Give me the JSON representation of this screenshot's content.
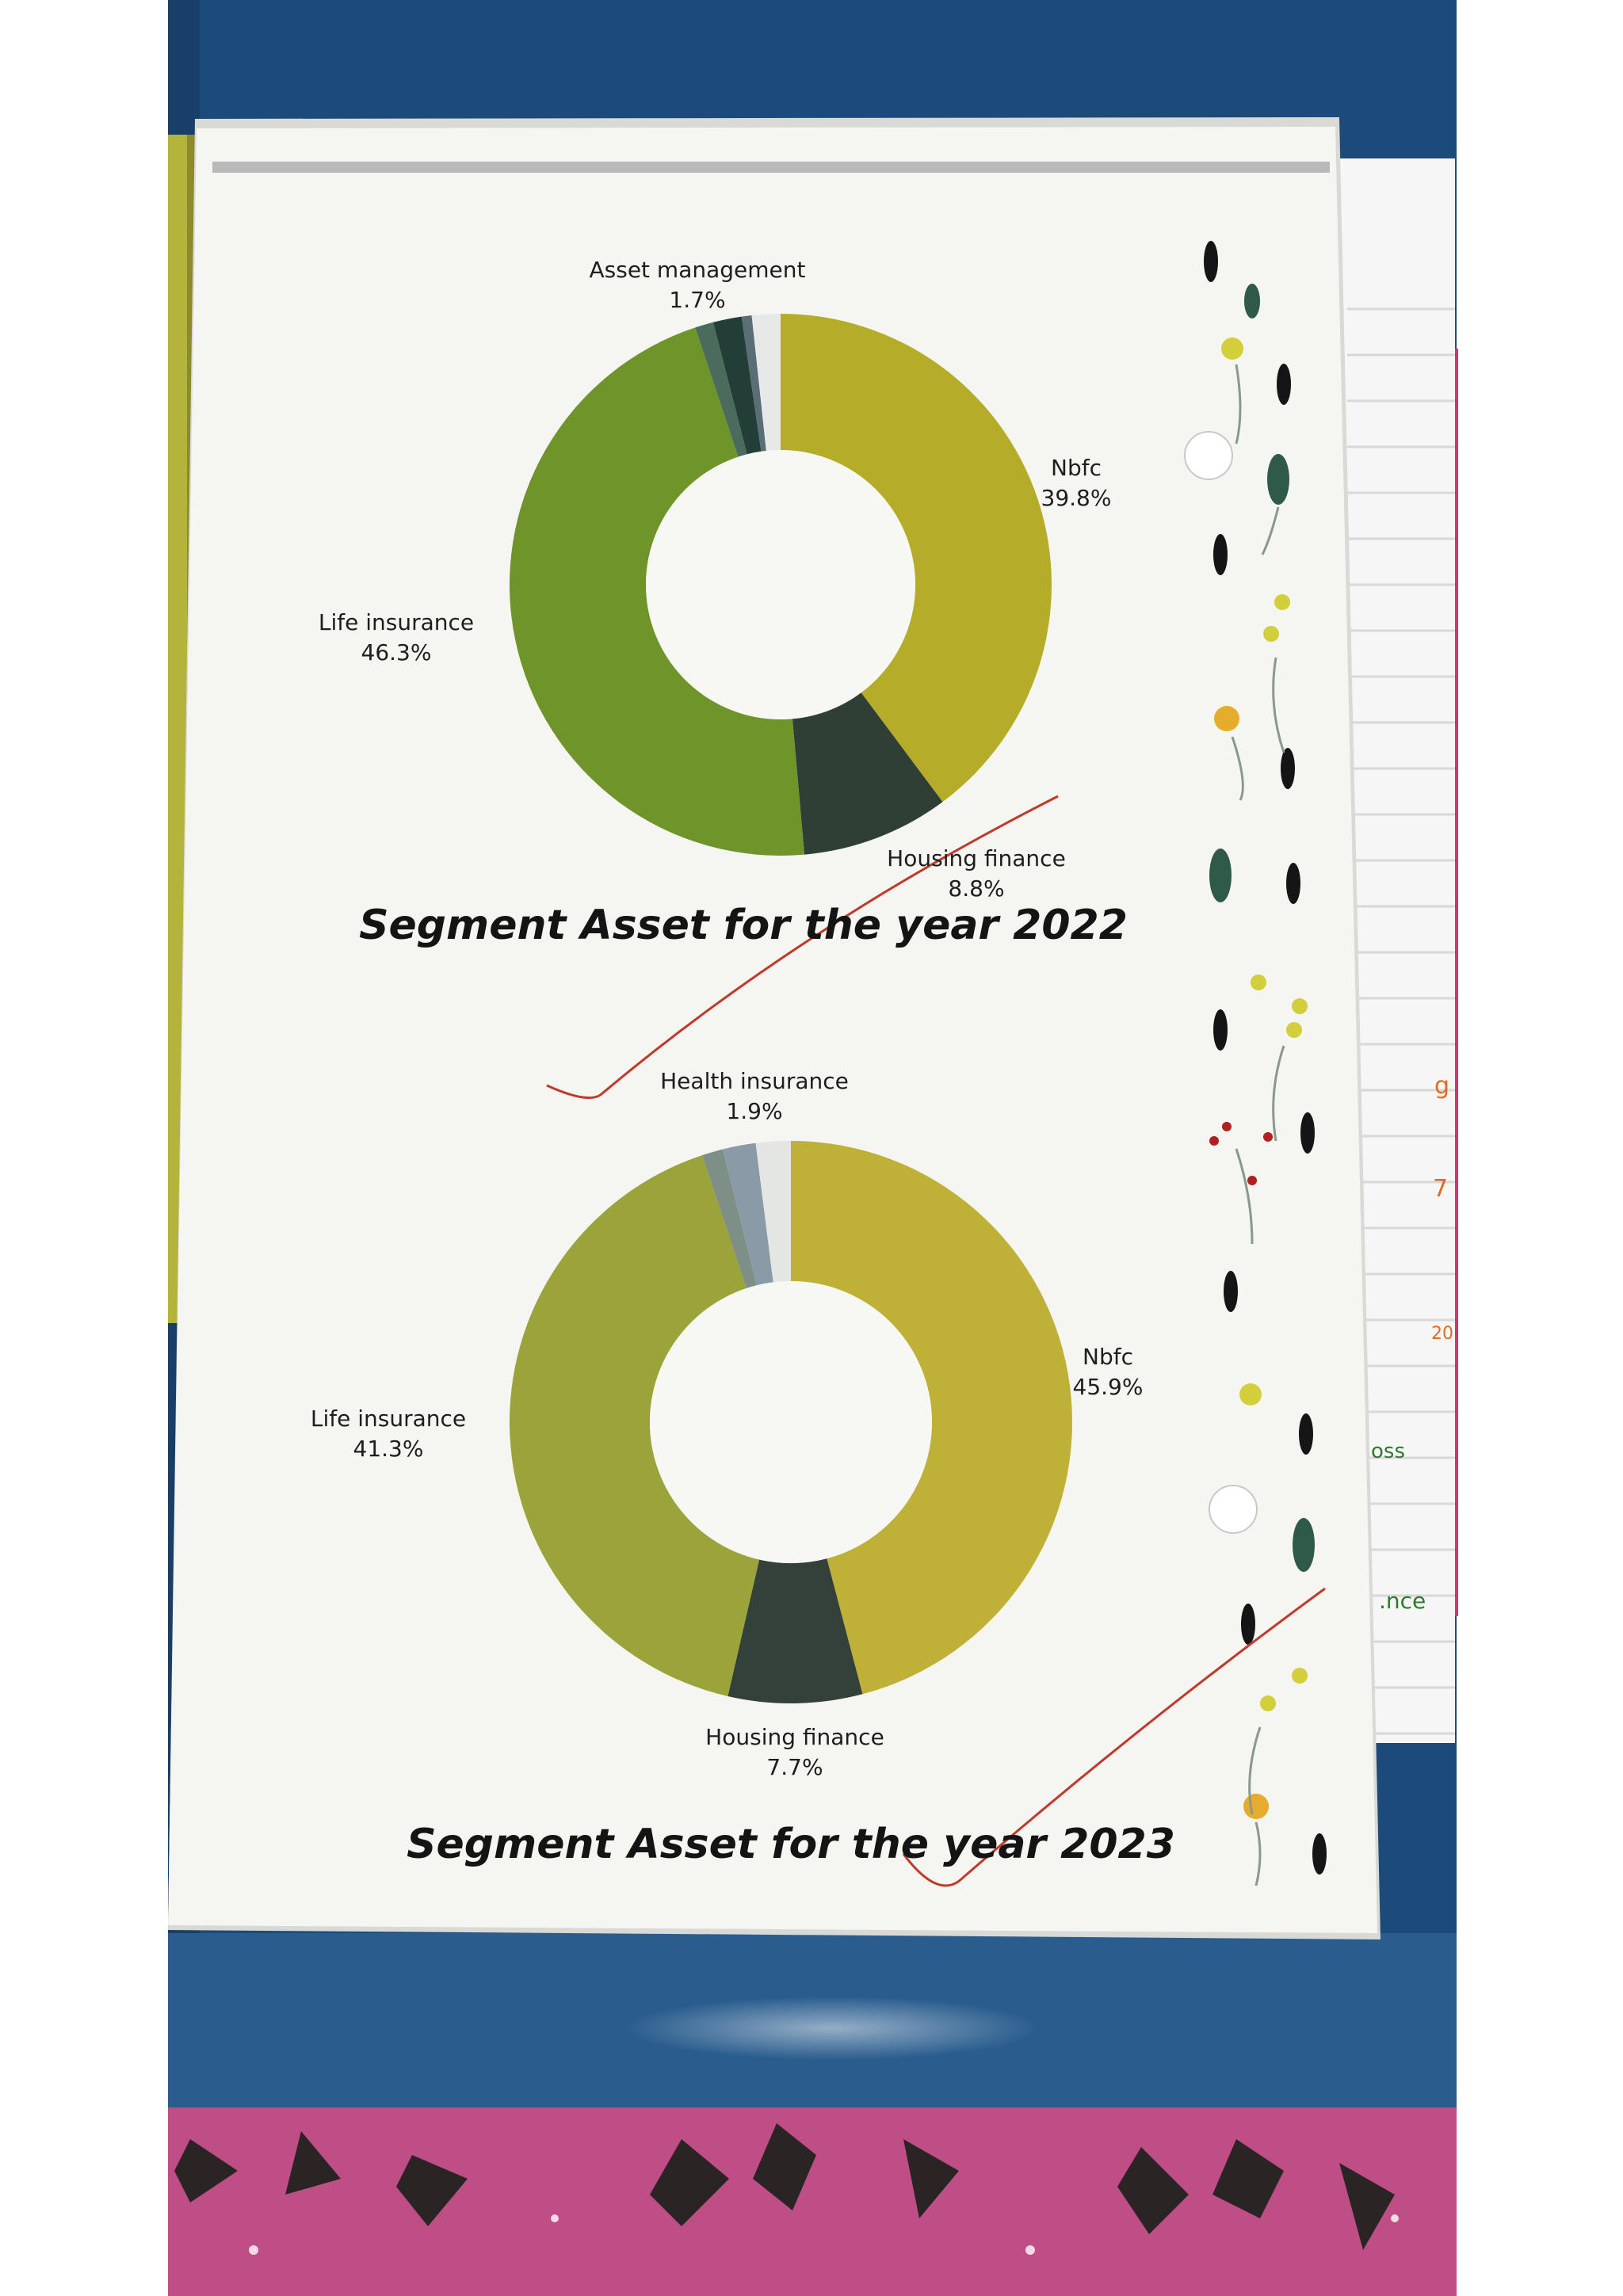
{
  "colors": {
    "nbfc": "#b9b02c",
    "housing_finance": "#2f3f35",
    "life_insurance": "#6f9429",
    "life_insurance_2023": "#9aa43a",
    "small_slices": [
      "#4b6b5c",
      "#233e36",
      "#5a6e76",
      "#c9cdc9",
      "#e9ecea"
    ],
    "page": "#f4f4f1",
    "binder": "#1c4b79",
    "fabric": "#c04e86"
  },
  "chart_data": [
    {
      "type": "donut",
      "title": "Segment Asset for the year 2022",
      "slices": [
        {
          "label": "Nbfc",
          "pct_text": "39.8%",
          "value": 39.8,
          "color": "#b5ac27"
        },
        {
          "label": "Housing finance",
          "pct_text": "8.8%",
          "value": 8.8,
          "color": "#2f3f35"
        },
        {
          "label": "Life insurance",
          "pct_text": "46.3%",
          "value": 46.3,
          "color": "#6f9429"
        },
        {
          "label": "",
          "pct_text": "",
          "value": 1.1,
          "color": "#4b6b5c"
        },
        {
          "label": "Asset management",
          "pct_text": "1.7%",
          "value": 1.7,
          "color": "#233e36"
        },
        {
          "label": "",
          "pct_text": "",
          "value": 0.6,
          "color": "#5a6e76"
        },
        {
          "label": "",
          "pct_text": "",
          "value": 1.7,
          "color": "#e6e9e7"
        }
      ]
    },
    {
      "type": "donut",
      "title": "Segment Asset for the year 2023",
      "slices": [
        {
          "label": "Nbfc",
          "pct_text": "45.9%",
          "value": 45.9,
          "color": "#bfb138"
        },
        {
          "label": "Housing finance",
          "pct_text": "7.7%",
          "value": 7.7,
          "color": "#34403a"
        },
        {
          "label": "Life insurance",
          "pct_text": "41.3%",
          "value": 41.3,
          "color": "#9aa43a"
        },
        {
          "label": "",
          "pct_text": "",
          "value": 1.2,
          "color": "#7d8f86"
        },
        {
          "label": "Health insurance",
          "pct_text": "1.9%",
          "value": 1.9,
          "color": "#8a9aa6"
        },
        {
          "label": "",
          "pct_text": "",
          "value": 2.0,
          "color": "#e4e6e3"
        }
      ]
    }
  ]
}
